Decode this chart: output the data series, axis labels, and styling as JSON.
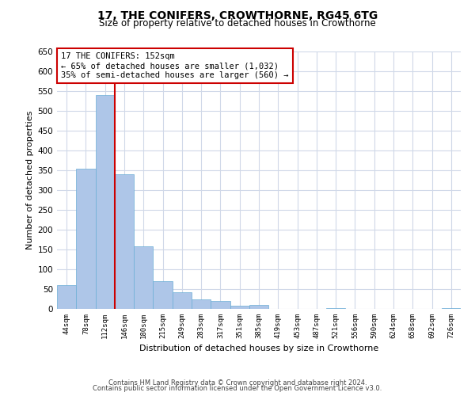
{
  "title": "17, THE CONIFERS, CROWTHORNE, RG45 6TG",
  "subtitle": "Size of property relative to detached houses in Crowthorne",
  "xlabel": "Distribution of detached houses by size in Crowthorne",
  "ylabel": "Number of detached properties",
  "footnote1": "Contains HM Land Registry data © Crown copyright and database right 2024.",
  "footnote2": "Contains public sector information licensed under the Open Government Licence v3.0.",
  "annotation_title": "17 THE CONIFERS: 152sqm",
  "annotation_line1": "← 65% of detached houses are smaller (1,032)",
  "annotation_line2": "35% of semi-detached houses are larger (560) →",
  "bar_labels": [
    "44sqm",
    "78sqm",
    "112sqm",
    "146sqm",
    "180sqm",
    "215sqm",
    "249sqm",
    "283sqm",
    "317sqm",
    "351sqm",
    "385sqm",
    "419sqm",
    "453sqm",
    "487sqm",
    "521sqm",
    "556sqm",
    "590sqm",
    "624sqm",
    "658sqm",
    "692sqm",
    "726sqm"
  ],
  "bar_values": [
    60,
    355,
    540,
    340,
    158,
    70,
    42,
    25,
    20,
    8,
    10,
    0,
    0,
    0,
    2,
    0,
    0,
    0,
    0,
    0,
    3
  ],
  "bar_color": "#aec6e8",
  "bar_edge_color": "#6baed6",
  "vline_color": "#cc0000",
  "ylim": [
    0,
    650
  ],
  "yticks": [
    0,
    50,
    100,
    150,
    200,
    250,
    300,
    350,
    400,
    450,
    500,
    550,
    600,
    650
  ],
  "annotation_box_color": "#cc0000",
  "background_color": "#ffffff",
  "grid_color": "#d0d8e8"
}
